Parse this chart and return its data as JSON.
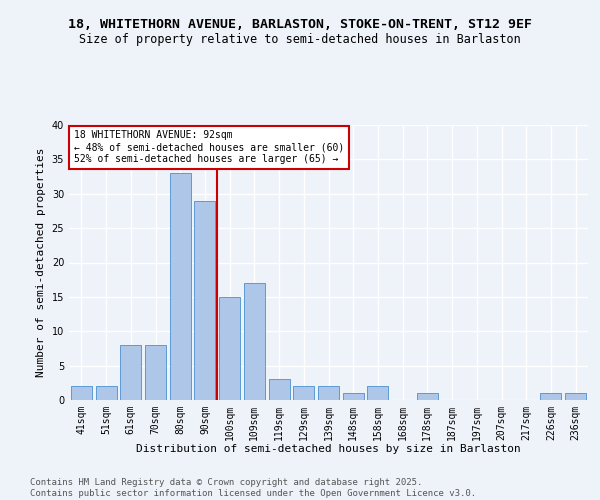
{
  "title1": "18, WHITETHORN AVENUE, BARLASTON, STOKE-ON-TRENT, ST12 9EF",
  "title2": "Size of property relative to semi-detached houses in Barlaston",
  "xlabel": "Distribution of semi-detached houses by size in Barlaston",
  "ylabel": "Number of semi-detached properties",
  "categories": [
    "41sqm",
    "51sqm",
    "61sqm",
    "70sqm",
    "80sqm",
    "90sqm",
    "100sqm",
    "109sqm",
    "119sqm",
    "129sqm",
    "139sqm",
    "148sqm",
    "158sqm",
    "168sqm",
    "178sqm",
    "187sqm",
    "197sqm",
    "207sqm",
    "217sqm",
    "226sqm",
    "236sqm"
  ],
  "values": [
    2,
    2,
    8,
    8,
    33,
    29,
    15,
    17,
    3,
    2,
    2,
    1,
    2,
    0,
    1,
    0,
    0,
    0,
    0,
    1,
    1
  ],
  "bar_color": "#aec6e8",
  "bar_edge_color": "#5b9bd5",
  "vline_x": 5.5,
  "vline_color": "#cc0000",
  "annotation_text": "18 WHITETHORN AVENUE: 92sqm\n← 48% of semi-detached houses are smaller (60)\n52% of semi-detached houses are larger (65) →",
  "annotation_box_color": "#ffffff",
  "annotation_box_edge": "#cc0000",
  "footer_text": "Contains HM Land Registry data © Crown copyright and database right 2025.\nContains public sector information licensed under the Open Government Licence v3.0.",
  "ylim": [
    0,
    40
  ],
  "yticks": [
    0,
    5,
    10,
    15,
    20,
    25,
    30,
    35,
    40
  ],
  "bg_color": "#eef2f9",
  "plot_bg_color": "#eef2f9",
  "grid_color": "#ffffff",
  "title1_fontsize": 9.5,
  "title2_fontsize": 8.5,
  "xlabel_fontsize": 8,
  "ylabel_fontsize": 8,
  "tick_fontsize": 7,
  "annot_fontsize": 7,
  "footer_fontsize": 6.5
}
